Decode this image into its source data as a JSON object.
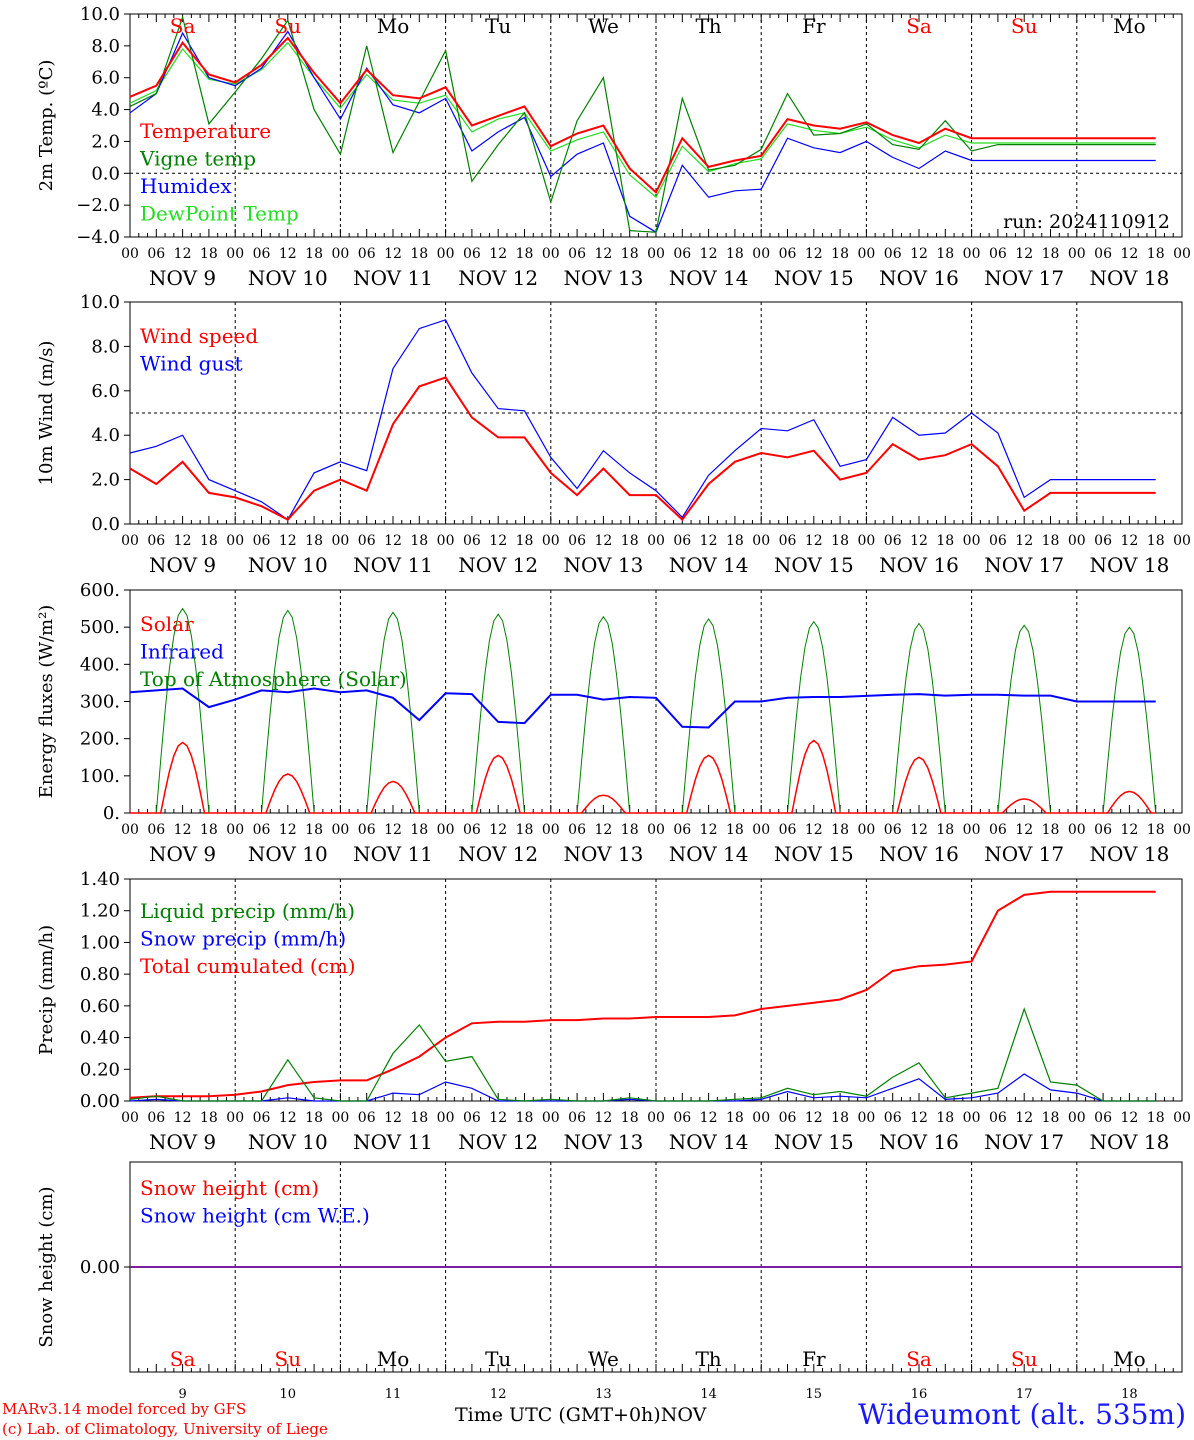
{
  "chart_data": [
    {
      "type": "line",
      "ylabel": "2m Temp. (ºC)",
      "ylim": [
        -4,
        10
      ],
      "yticks": [
        10,
        8,
        6,
        4,
        2,
        0,
        -2,
        -4
      ],
      "ytick_labels": [
        "10.0",
        "8.0",
        "6.0",
        "4.0",
        "2.0",
        "0.0",
        "−2.0",
        "−4.0"
      ],
      "reference_line": 0,
      "annotation": "run: 2024110912",
      "weekdays": [
        "Sa",
        "Su",
        "Mo",
        "Tu",
        "We",
        "Th",
        "Fr",
        "Sa",
        "Su",
        "Mo"
      ],
      "weekday_colors": [
        "#ff0000",
        "#ff0000",
        "#000000",
        "#000000",
        "#000000",
        "#000000",
        "#000000",
        "#ff0000",
        "#ff0000",
        "#000000"
      ],
      "x_hours": [
        0,
        6,
        12,
        18,
        24,
        30,
        36,
        42,
        48,
        54,
        60,
        66,
        72,
        78,
        84,
        90,
        96,
        102,
        108,
        114,
        120,
        126,
        132,
        138,
        144,
        150,
        156,
        162,
        168,
        174,
        180,
        186,
        192,
        198,
        204,
        210,
        216,
        222,
        228,
        234
      ],
      "series": [
        {
          "name": "Temperature",
          "color": "#ff0000",
          "values": [
            4.8,
            5.5,
            8.2,
            6.2,
            5.7,
            6.8,
            8.5,
            6.3,
            4.4,
            6.5,
            4.9,
            4.7,
            5.4,
            3.0,
            3.6,
            4.2,
            1.7,
            2.5,
            3.0,
            0.3,
            -1.2,
            2.2,
            0.4,
            0.8,
            1.1,
            3.4,
            3.0,
            2.8,
            3.2,
            2.4,
            1.9,
            2.8,
            2.2,
            2.2,
            2.2,
            2.2,
            2.2,
            2.2,
            2.2,
            2.2
          ]
        },
        {
          "name": "Vigne temp",
          "color": "#008000",
          "values": [
            4.2,
            5.0,
            9.8,
            3.1,
            5.1,
            7.2,
            9.6,
            4.0,
            1.2,
            8.0,
            1.3,
            4.5,
            7.7,
            -0.5,
            1.8,
            3.8,
            -1.8,
            3.3,
            6.0,
            -3.6,
            -3.7,
            4.7,
            0.2,
            0.5,
            1.5,
            5.0,
            2.4,
            2.5,
            3.1,
            1.8,
            1.5,
            3.3,
            1.4,
            1.8,
            1.8,
            1.8,
            1.8,
            1.8,
            1.8,
            1.8
          ]
        },
        {
          "name": "Humidex",
          "color": "#0000ff",
          "values": [
            3.8,
            5.0,
            8.8,
            6.0,
            5.5,
            6.6,
            8.9,
            6.0,
            3.4,
            6.6,
            4.3,
            3.8,
            4.7,
            1.4,
            2.6,
            3.5,
            -0.2,
            1.2,
            1.9,
            -2.7,
            -3.7,
            0.5,
            -1.5,
            -1.1,
            -1.0,
            2.2,
            1.6,
            1.3,
            2.0,
            1.0,
            0.3,
            1.4,
            0.8,
            0.8,
            0.8,
            0.8,
            0.8,
            0.8,
            0.8,
            0.8
          ]
        },
        {
          "name": "DewPoint Temp",
          "color": "#22dd22",
          "values": [
            4.4,
            5.2,
            7.8,
            5.9,
            5.6,
            6.5,
            8.2,
            6.0,
            4.1,
            6.2,
            4.6,
            4.4,
            4.9,
            2.6,
            3.4,
            3.8,
            1.4,
            2.1,
            2.6,
            -0.1,
            -1.5,
            1.7,
            0.1,
            0.6,
            0.9,
            3.1,
            2.7,
            2.5,
            2.9,
            2.1,
            1.6,
            2.4,
            1.9,
            1.9,
            1.9,
            1.9,
            1.9,
            1.9,
            1.9,
            1.9
          ]
        }
      ]
    },
    {
      "type": "line",
      "ylabel": "10m Wind (m/s)",
      "ylim": [
        0,
        10
      ],
      "yticks": [
        10,
        8,
        6,
        4,
        2,
        0
      ],
      "ytick_labels": [
        "10.0",
        "8.0",
        "6.0",
        "4.0",
        "2.0",
        "0.0"
      ],
      "reference_line": 5,
      "x_hours": [
        0,
        6,
        12,
        18,
        24,
        30,
        36,
        42,
        48,
        54,
        60,
        66,
        72,
        78,
        84,
        90,
        96,
        102,
        108,
        114,
        120,
        126,
        132,
        138,
        144,
        150,
        156,
        162,
        168,
        174,
        180,
        186,
        192,
        198,
        204,
        210,
        216,
        222,
        228,
        234
      ],
      "series": [
        {
          "name": "Wind speed",
          "color": "#ff0000",
          "values": [
            2.5,
            1.8,
            2.8,
            1.4,
            1.2,
            0.8,
            0.2,
            1.5,
            2.0,
            1.5,
            4.5,
            6.2,
            6.6,
            4.8,
            3.9,
            3.9,
            2.3,
            1.3,
            2.5,
            1.3,
            1.3,
            0.2,
            1.8,
            2.8,
            3.2,
            3.0,
            3.3,
            2.0,
            2.3,
            3.6,
            2.9,
            3.1,
            3.6,
            2.6,
            0.6,
            1.4,
            1.4,
            1.4,
            1.4,
            1.4
          ]
        },
        {
          "name": "Wind gust",
          "color": "#0000ff",
          "values": [
            3.2,
            3.5,
            4.0,
            2.0,
            1.5,
            1.0,
            0.2,
            2.3,
            2.8,
            2.4,
            7.0,
            8.8,
            9.2,
            6.8,
            5.2,
            5.1,
            3.0,
            1.6,
            3.3,
            2.3,
            1.5,
            0.3,
            2.2,
            3.3,
            4.3,
            4.2,
            4.7,
            2.6,
            2.9,
            4.8,
            4.0,
            4.1,
            5.0,
            4.1,
            1.2,
            2.0,
            2.0,
            2.0,
            2.0,
            2.0
          ]
        }
      ]
    },
    {
      "type": "line",
      "ylabel": "Energy fluxes (W/m²)",
      "ylim": [
        0,
        600
      ],
      "yticks": [
        600,
        500,
        400,
        300,
        200,
        100,
        0
      ],
      "ytick_labels": [
        "600.",
        "500.",
        "400.",
        "300.",
        "200.",
        "100.",
        "0."
      ],
      "solar_noon_hours": [
        12,
        36,
        60,
        84,
        108,
        132,
        156,
        180,
        204,
        228
      ],
      "solar_peaks": [
        190,
        105,
        85,
        155,
        48,
        155,
        195,
        150,
        38,
        58
      ],
      "toa_peaks": [
        550,
        545,
        540,
        535,
        528,
        522,
        515,
        510,
        505,
        500
      ],
      "x_hours": [
        0,
        6,
        12,
        18,
        24,
        30,
        36,
        42,
        48,
        54,
        60,
        66,
        72,
        78,
        84,
        90,
        96,
        102,
        108,
        114,
        120,
        126,
        132,
        138,
        144,
        150,
        156,
        162,
        168,
        174,
        180,
        186,
        192,
        198,
        204,
        210,
        216,
        222,
        228,
        234
      ],
      "series": [
        {
          "name": "Solar",
          "color": "#ff0000",
          "values": []
        },
        {
          "name": "Infrared",
          "color": "#0000ff",
          "values": [
            325,
            330,
            335,
            285,
            305,
            330,
            325,
            335,
            325,
            330,
            310,
            250,
            322,
            320,
            245,
            242,
            318,
            318,
            305,
            312,
            310,
            232,
            230,
            300,
            300,
            310,
            312,
            312,
            315,
            318,
            320,
            316,
            318,
            318,
            316,
            316,
            300,
            300,
            300,
            300
          ]
        },
        {
          "name": "Top of Atmosphere (Solar)",
          "color": "#008000",
          "values": []
        }
      ]
    },
    {
      "type": "line",
      "ylabel": "Precip (mm/h)",
      "ylim": [
        0,
        1.4
      ],
      "yticks": [
        1.4,
        1.2,
        1.0,
        0.8,
        0.6,
        0.4,
        0.2,
        0
      ],
      "ytick_labels": [
        "1.40",
        "1.20",
        "1.00",
        "0.80",
        "0.60",
        "0.40",
        "0.20",
        "0.00"
      ],
      "x_hours": [
        0,
        6,
        12,
        18,
        24,
        30,
        36,
        42,
        48,
        54,
        60,
        66,
        72,
        78,
        84,
        90,
        96,
        102,
        108,
        114,
        120,
        126,
        132,
        138,
        144,
        150,
        156,
        162,
        168,
        174,
        180,
        186,
        192,
        198,
        204,
        210,
        216,
        222,
        228,
        234
      ],
      "series": [
        {
          "name": "Liquid precip (mm/h)",
          "color": "#008000",
          "values": [
            0.01,
            0.03,
            0.0,
            0.0,
            0.0,
            0.0,
            0.26,
            0.02,
            0.0,
            0.0,
            0.3,
            0.48,
            0.25,
            0.28,
            0.01,
            0.0,
            0.01,
            0.0,
            0.0,
            0.02,
            0.0,
            0.0,
            0.0,
            0.01,
            0.02,
            0.08,
            0.04,
            0.06,
            0.03,
            0.15,
            0.24,
            0.02,
            0.05,
            0.08,
            0.58,
            0.12,
            0.1,
            0.0,
            0.0,
            0.0
          ]
        },
        {
          "name": "Snow precip (mm/h)",
          "color": "#0000ff",
          "values": [
            0.0,
            0.01,
            0.0,
            0.0,
            0.0,
            0.0,
            0.02,
            0.0,
            0.0,
            0.0,
            0.05,
            0.04,
            0.12,
            0.08,
            0.0,
            0.0,
            0.0,
            0.0,
            0.0,
            0.01,
            0.0,
            0.0,
            0.0,
            0.0,
            0.01,
            0.06,
            0.02,
            0.03,
            0.02,
            0.08,
            0.14,
            0.01,
            0.02,
            0.05,
            0.17,
            0.07,
            0.05,
            0.0,
            0.0,
            0.0
          ]
        },
        {
          "name": "Total cumulated (cm)",
          "color": "#ff0000",
          "values": [
            0.02,
            0.03,
            0.03,
            0.03,
            0.04,
            0.06,
            0.1,
            0.12,
            0.13,
            0.13,
            0.2,
            0.28,
            0.4,
            0.49,
            0.5,
            0.5,
            0.51,
            0.51,
            0.52,
            0.52,
            0.53,
            0.53,
            0.53,
            0.54,
            0.58,
            0.6,
            0.62,
            0.64,
            0.7,
            0.82,
            0.85,
            0.86,
            0.88,
            1.2,
            1.3,
            1.32,
            1.32,
            1.32,
            1.32,
            1.32
          ]
        }
      ]
    },
    {
      "type": "line",
      "ylabel": "Snow height (cm)",
      "yticks": [
        0
      ],
      "ytick_labels": [
        "0.00"
      ],
      "x_hours": [
        0,
        234
      ],
      "series": [
        {
          "name": "Snow height (cm)",
          "color": "#ff0000",
          "values": [
            0,
            0
          ]
        },
        {
          "name": "Snow height (cm W.E.)",
          "color": "#0000ff",
          "values": [
            0,
            0
          ]
        }
      ]
    }
  ],
  "x_axis": {
    "hour_labels": [
      "00",
      "06",
      "12",
      "18"
    ],
    "final_label": "00",
    "dates": [
      "NOV  9",
      "NOV 10",
      "NOV 11",
      "NOV 12",
      "NOV 13",
      "NOV 14",
      "NOV 15",
      "NOV 16",
      "NOV 17",
      "NOV 18"
    ],
    "day_numbers": [
      "9",
      "10",
      "11",
      "12",
      "13",
      "14",
      "15",
      "16",
      "17",
      "18"
    ],
    "title": "Time UTC (GMT+0h)",
    "month": "NOV"
  },
  "footer": {
    "credit_line1": "MARv3.14 model forced by GFS",
    "credit_line2": "(c) Lab. of Climatology, University of Liege",
    "station": "Wideumont (alt. 535m)"
  },
  "colors": {
    "red": "#ff0000",
    "green": "#008000",
    "blue": "#0000ff",
    "light_green": "#22dd22",
    "purple": "#7a1fa0"
  }
}
